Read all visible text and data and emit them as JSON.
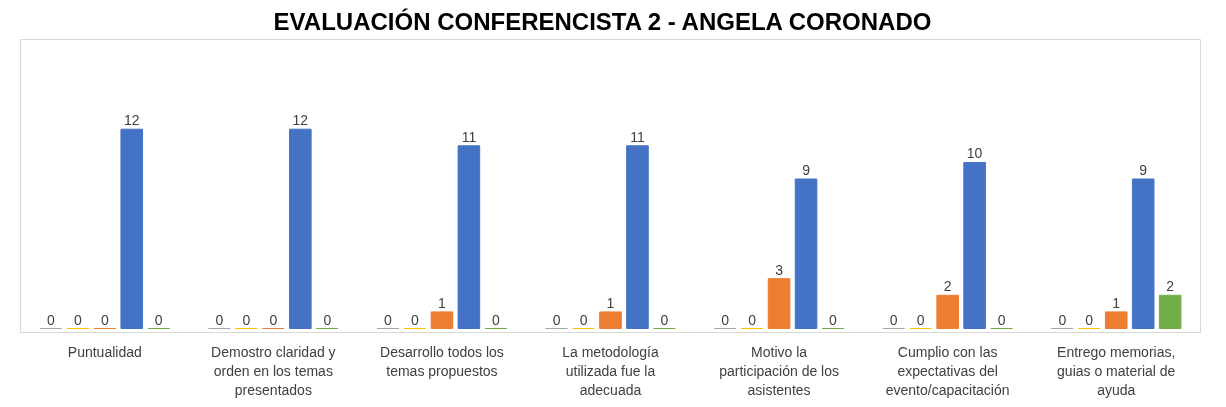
{
  "chart_data": {
    "type": "bar",
    "title": "EVALUACIÓN  CONFERENCISTA 2 -  ANGELA CORONADO",
    "categories": [
      "Puntualidad",
      "Demostro claridad y orden en los temas presentados",
      "Desarrollo todos los temas propuestos",
      "La metodología utilizada fue la adecuada",
      "Motivo la participación de los asistentes",
      "Cumplio con las expectativas del evento/capacitación",
      "Entrego memorias, guias o material de ayuda"
    ],
    "series": [
      {
        "color": "#a5a5a5",
        "values": [
          0,
          0,
          0,
          0,
          0,
          0,
          0
        ]
      },
      {
        "color": "#ffc000",
        "values": [
          0,
          0,
          0,
          0,
          0,
          0,
          0
        ]
      },
      {
        "color": "#ed7d31",
        "values": [
          0,
          0,
          1,
          1,
          3,
          2,
          1
        ]
      },
      {
        "color": "#4472c4",
        "values": [
          12,
          12,
          11,
          11,
          9,
          10,
          9
        ]
      },
      {
        "color": "#70ad47",
        "values": [
          0,
          0,
          0,
          0,
          0,
          0,
          2
        ]
      }
    ],
    "data_labels": true,
    "grid": false,
    "legend": false
  }
}
